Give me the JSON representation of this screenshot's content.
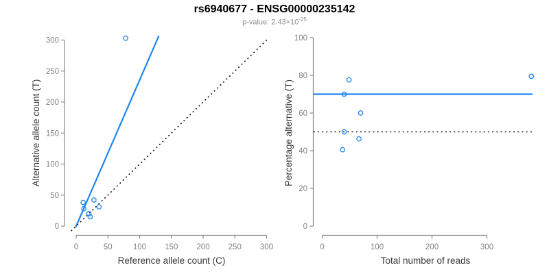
{
  "header": {
    "title": "rs6940677 - ENSG00000235142",
    "subtitle_prefix": "p-value: 2.43×10",
    "subtitle_exponent": "-25"
  },
  "colors": {
    "accent_blue": "#1E86F0",
    "axis_gray": "#888888",
    "tick_label_gray": "#808080",
    "axis_title_dark": "#383838",
    "identity_black": "#111111",
    "subtitle_gray": "#8c8c8c"
  },
  "chart_data": [
    {
      "type": "scatter",
      "panel": "left",
      "xlabel": "Reference allele count (C)",
      "ylabel": "Alternative allele count (T)",
      "xlim": [
        0,
        312
      ],
      "ylim": [
        0,
        310
      ],
      "xticks": [
        0,
        50,
        100,
        150,
        200,
        250,
        300
      ],
      "yticks": [
        0,
        50,
        100,
        150,
        200,
        250,
        300
      ],
      "grid": false,
      "legend": null,
      "points": [
        [
          11,
          38
        ],
        [
          12,
          28
        ],
        [
          28,
          42
        ],
        [
          20,
          20
        ],
        [
          36,
          31
        ],
        [
          22,
          15
        ],
        [
          78,
          303
        ]
      ],
      "lines": [
        {
          "name": "fitted-proportion-line",
          "style": "solid",
          "color_key": "accent_blue",
          "width": 2.2,
          "from": [
            -0.8,
            -1.9
          ],
          "to": [
            130.3,
            307
          ]
        },
        {
          "name": "identity-line",
          "style": "dotted",
          "color_key": "identity_black",
          "width": 1.6,
          "from": [
            -8,
            -8
          ],
          "to": [
            302,
            302
          ]
        }
      ]
    },
    {
      "type": "scatter",
      "panel": "right",
      "xlabel": "Total number of reads",
      "ylabel": "Percentage alternative (T)",
      "xlim": [
        0,
        385
      ],
      "ylim": [
        0,
        100
      ],
      "xticks": [
        0,
        100,
        200,
        300
      ],
      "yticks": [
        0,
        20,
        40,
        60,
        80,
        100
      ],
      "grid": false,
      "legend": null,
      "points": [
        [
          49,
          77.6
        ],
        [
          40,
          70
        ],
        [
          70,
          60
        ],
        [
          40,
          50
        ],
        [
          67,
          46.3
        ],
        [
          37,
          40.5
        ],
        [
          381,
          79.5
        ]
      ],
      "lines": [
        {
          "name": "fitted-percentage-line",
          "style": "solid",
          "color_key": "accent_blue",
          "width": 2.2,
          "from": [
            -16,
            70
          ],
          "to": [
            383,
            70
          ]
        },
        {
          "name": "null-50-percent-line",
          "style": "dotted",
          "color_key": "identity_black",
          "width": 1.6,
          "from": [
            -16,
            50
          ],
          "to": [
            383,
            50
          ]
        }
      ]
    }
  ]
}
